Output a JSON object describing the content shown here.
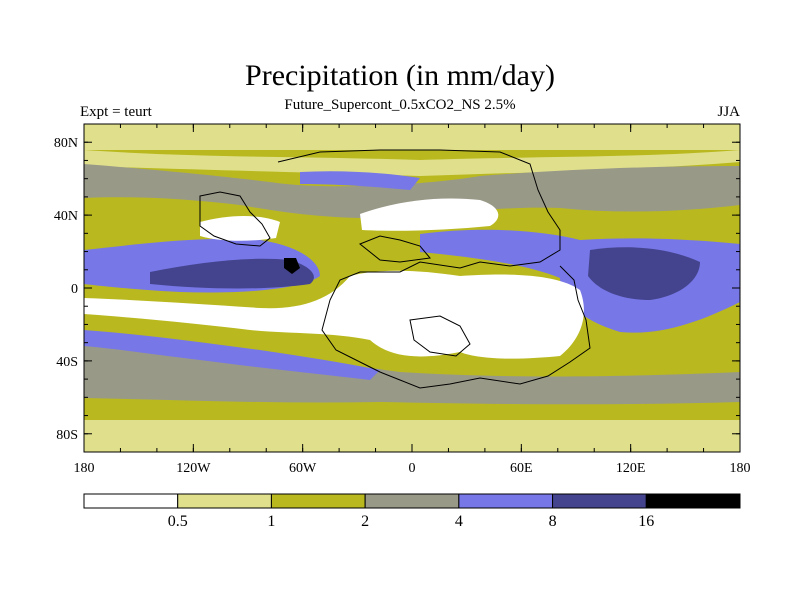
{
  "title": "Precipitation (in mm/day)",
  "subtitle": "Future_Supercont_0.5xCO2_NS 2.5%",
  "left_label": "Expt = teurt",
  "right_label": "JJA",
  "map": {
    "lon_ticks": [
      "180",
      "120W",
      "60W",
      "0",
      "60E",
      "120E",
      "180"
    ],
    "lat_ticks": [
      "80N",
      "40N",
      "0",
      "40S",
      "80S"
    ],
    "lat_values": [
      80,
      40,
      0,
      -40,
      -80
    ],
    "lon_range": [
      -180,
      180
    ],
    "lat_range": [
      -90,
      90
    ]
  },
  "colorbar": {
    "levels": [
      "0.5",
      "1",
      "2",
      "4",
      "8",
      "16"
    ],
    "colors": [
      "#ffffff",
      "#e0e08c",
      "#b9b91f",
      "#999988",
      "#7777e8",
      "#44448e",
      "#000000"
    ]
  }
}
